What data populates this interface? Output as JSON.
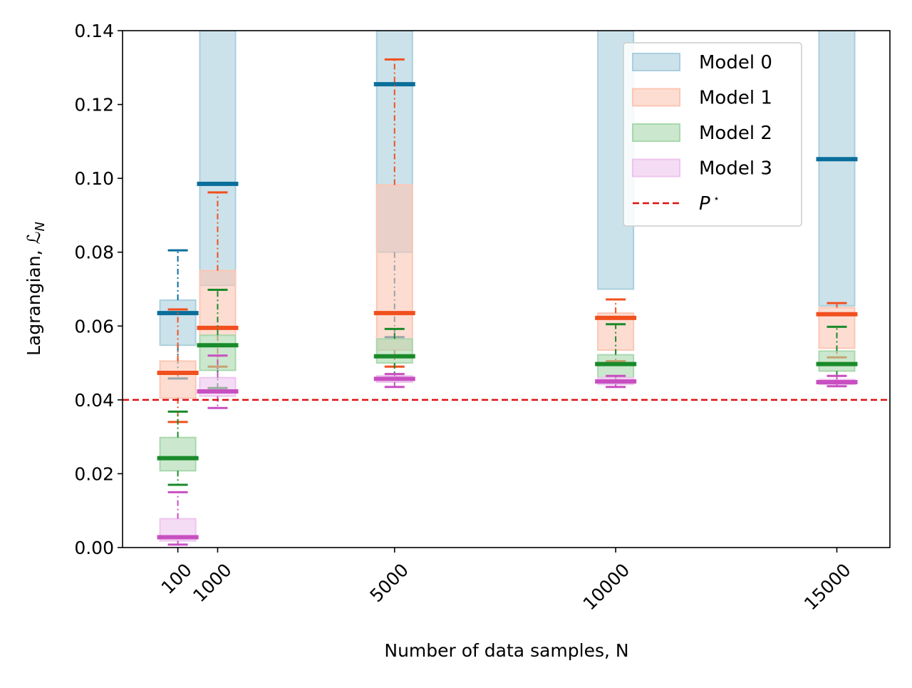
{
  "chart_data": {
    "type": "box",
    "title": "",
    "xlabel": "Number of data samples, N",
    "ylabel": "Lagrangian, ℒ",
    "ylabel_subscript": "N",
    "ylim": [
      0,
      0.14
    ],
    "xlim": [
      -1150,
      16200
    ],
    "yticks": [
      "0.00",
      "0.02",
      "0.04",
      "0.06",
      "0.08",
      "0.10",
      "0.12",
      "0.14"
    ],
    "xticks": [
      "100",
      "1000",
      "5000",
      "10000",
      "15000"
    ],
    "x": [
      100,
      1000,
      5000,
      10000,
      15000
    ],
    "reference_line": {
      "label": "P",
      "label_superscript": "⋆",
      "value": 0.04,
      "style": "dashed",
      "color": "#dd1111"
    },
    "legend_position": "upper right",
    "series": [
      {
        "name": "Model 0",
        "line_color": "#0a6e9a",
        "fill_color": "#aacfde",
        "boxes": [
          {
            "x": 100,
            "whisker_low": 0.0458,
            "q1": 0.0548,
            "median": 0.0635,
            "q3": 0.067,
            "whisker_high": 0.0805
          },
          {
            "x": 1000,
            "whisker_low": 0.071,
            "q1": 0.071,
            "median": 0.0985,
            "q3": 0.14,
            "whisker_high": 0.14
          },
          {
            "x": 5000,
            "whisker_low": 0.057,
            "q1": 0.08,
            "median": 0.1255,
            "q3": 0.14,
            "whisker_high": 0.14
          },
          {
            "x": 10000,
            "whisker_low": 0.07,
            "q1": 0.07,
            "median": 0.14,
            "q3": 0.14,
            "whisker_high": 0.14
          },
          {
            "x": 15000,
            "whisker_low": 0.0655,
            "q1": 0.0655,
            "median": 0.1052,
            "q3": 0.14,
            "whisker_high": 0.14
          }
        ]
      },
      {
        "name": "Model 1",
        "line_color": "#f0501e",
        "fill_color": "#fcc6b4",
        "boxes": [
          {
            "x": 100,
            "whisker_low": 0.034,
            "q1": 0.0405,
            "median": 0.0473,
            "q3": 0.0505,
            "whisker_high": 0.0645
          },
          {
            "x": 1000,
            "whisker_low": 0.049,
            "q1": 0.0575,
            "median": 0.0595,
            "q3": 0.075,
            "whisker_high": 0.0962
          },
          {
            "x": 5000,
            "whisker_low": 0.049,
            "q1": 0.0535,
            "median": 0.0635,
            "q3": 0.0982,
            "whisker_high": 0.1322
          },
          {
            "x": 10000,
            "whisker_low": 0.0505,
            "q1": 0.0535,
            "median": 0.0622,
            "q3": 0.0635,
            "whisker_high": 0.0672
          },
          {
            "x": 15000,
            "whisker_low": 0.0515,
            "q1": 0.054,
            "median": 0.0632,
            "q3": 0.065,
            "whisker_high": 0.0662
          }
        ]
      },
      {
        "name": "Model 2",
        "line_color": "#1a8a2a",
        "fill_color": "#a9d8ad",
        "boxes": [
          {
            "x": 100,
            "whisker_low": 0.017,
            "q1": 0.0208,
            "median": 0.0242,
            "q3": 0.0298,
            "whisker_high": 0.0368
          },
          {
            "x": 1000,
            "whisker_low": 0.0432,
            "q1": 0.048,
            "median": 0.0548,
            "q3": 0.0575,
            "whisker_high": 0.0698
          },
          {
            "x": 5000,
            "whisker_low": 0.046,
            "q1": 0.05,
            "median": 0.0518,
            "q3": 0.0565,
            "whisker_high": 0.0592
          },
          {
            "x": 10000,
            "whisker_low": 0.0445,
            "q1": 0.046,
            "median": 0.0497,
            "q3": 0.0522,
            "whisker_high": 0.0605
          },
          {
            "x": 15000,
            "whisker_low": 0.045,
            "q1": 0.0478,
            "median": 0.0497,
            "q3": 0.0532,
            "whisker_high": 0.0598
          }
        ]
      },
      {
        "name": "Model 3",
        "line_color": "#c84fc1",
        "fill_color": "#eec4ee",
        "boxes": [
          {
            "x": 100,
            "whisker_low": 0.0008,
            "q1": 0.0018,
            "median": 0.0028,
            "q3": 0.0078,
            "whisker_high": 0.015
          },
          {
            "x": 1000,
            "whisker_low": 0.0378,
            "q1": 0.041,
            "median": 0.0423,
            "q3": 0.046,
            "whisker_high": 0.052
          },
          {
            "x": 5000,
            "whisker_low": 0.0435,
            "q1": 0.0448,
            "median": 0.0457,
            "q3": 0.0465,
            "whisker_high": 0.047
          },
          {
            "x": 10000,
            "whisker_low": 0.0435,
            "q1": 0.0442,
            "median": 0.045,
            "q3": 0.046,
            "whisker_high": 0.0465
          },
          {
            "x": 15000,
            "whisker_low": 0.0437,
            "q1": 0.0442,
            "median": 0.0448,
            "q3": 0.0455,
            "whisker_high": 0.0465
          }
        ]
      }
    ]
  }
}
